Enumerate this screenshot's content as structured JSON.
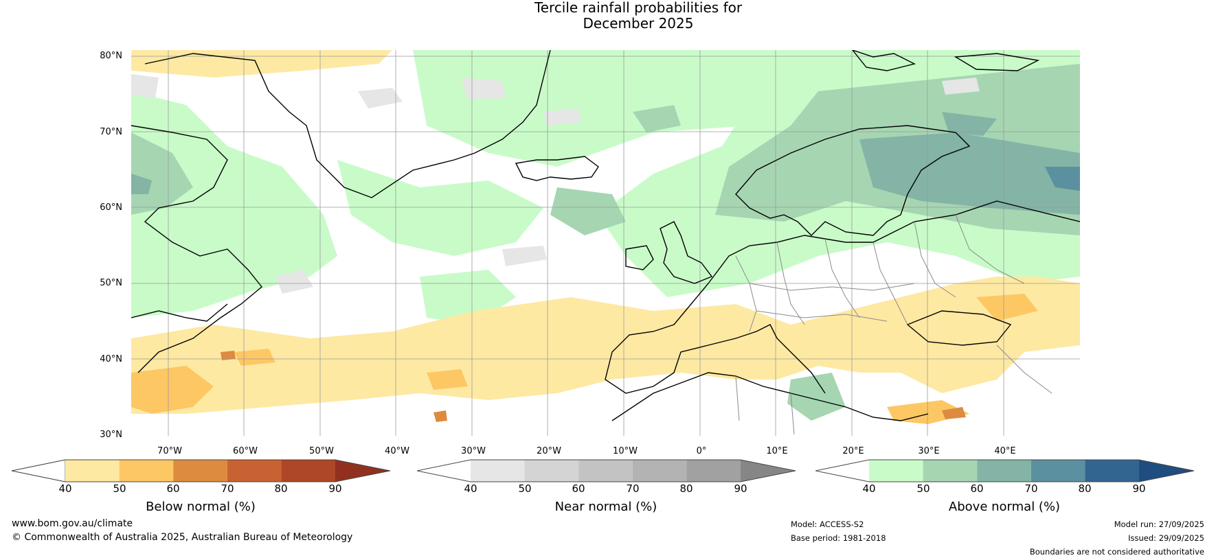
{
  "title": {
    "line1": "Tercile rainfall probabilities for",
    "line2": "December 2025"
  },
  "map": {
    "name": "North Atlantic / Europe rainfall outlook map",
    "lat_labels": [
      "80°N",
      "70°N",
      "60°N",
      "50°N",
      "40°N",
      "30°N"
    ],
    "lon_labels": [
      "70°W",
      "60°W",
      "50°W",
      "40°W",
      "30°W",
      "20°W",
      "10°W",
      "0°",
      "10°E",
      "20°E",
      "30°E",
      "40°E"
    ]
  },
  "colorbars": [
    {
      "label": "Below normal (%)",
      "ticks": [
        "40",
        "50",
        "60",
        "70",
        "80",
        "90"
      ],
      "colors": [
        "#ffffff",
        "#fee9a3",
        "#fdc764",
        "#dd8b3f",
        "#c96232",
        "#ad4727",
        "#923020"
      ]
    },
    {
      "label": "Near normal (%)",
      "ticks": [
        "40",
        "50",
        "60",
        "70",
        "80",
        "90"
      ],
      "colors": [
        "#ffffff",
        "#e6e6e6",
        "#d4d4d4",
        "#c3c3c3",
        "#b3b3b3",
        "#a1a1a1",
        "#868686"
      ]
    },
    {
      "label": "Above normal (%)",
      "ticks": [
        "40",
        "50",
        "60",
        "70",
        "80",
        "90"
      ],
      "colors": [
        "#ffffff",
        "#c9fbc9",
        "#a6d5b2",
        "#83b4a5",
        "#5b90a0",
        "#336591",
        "#1f4d80"
      ]
    }
  ],
  "footer": {
    "website": "www.bom.gov.au/climate",
    "copyright": "© Commonwealth of Australia 2025, Australian Bureau of Meteorology",
    "model": "Model: ACCESS-S2",
    "base_period": "Base period: 1981-2018",
    "model_run": "Model run: 27/09/2025",
    "issued": "Issued: 29/09/2025",
    "disclaimer": "Boundaries are not considered authoritative"
  }
}
